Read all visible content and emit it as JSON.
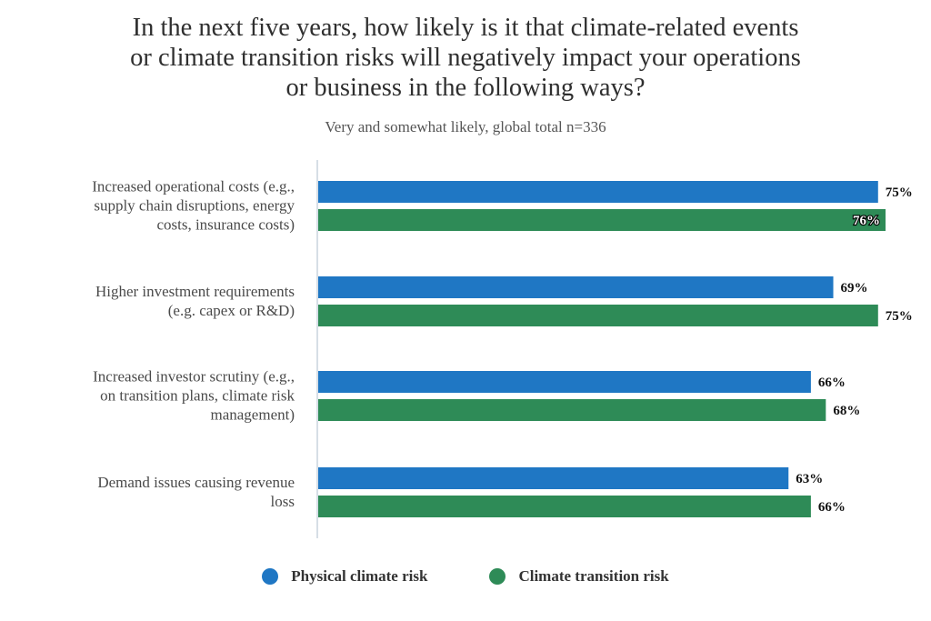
{
  "chart_data": {
    "type": "bar",
    "orientation": "horizontal",
    "title_lines": [
      "In the next five years, how likely is it that climate-related events",
      "or climate transition risks will negatively impact your operations",
      "or business in the following ways?"
    ],
    "subtitle": "Very and somewhat likely, global total n=336",
    "categories": [
      [
        "Increased operational costs (e.g.,",
        "supply chain disruptions, energy",
        "costs, insurance costs)"
      ],
      [
        "Higher investment requirements",
        "(e.g. capex or R&D)"
      ],
      [
        "Increased investor scrutiny (e.g.,",
        "on transition plans, climate risk",
        "management)"
      ],
      [
        "Demand issues causing revenue",
        "loss"
      ]
    ],
    "series": [
      {
        "name": "Physical climate risk",
        "color": "#1f77c4",
        "values": [
          75,
          69,
          66,
          63
        ],
        "labels": [
          "75%",
          "69%",
          "66%",
          "63%"
        ]
      },
      {
        "name": "Climate transition risk",
        "color": "#2e8b57",
        "values": [
          76,
          75,
          68,
          66
        ],
        "labels": [
          "76%",
          "75%",
          "68%",
          "66%"
        ]
      }
    ],
    "xlim": [
      0,
      76
    ],
    "legend_position": "bottom"
  }
}
